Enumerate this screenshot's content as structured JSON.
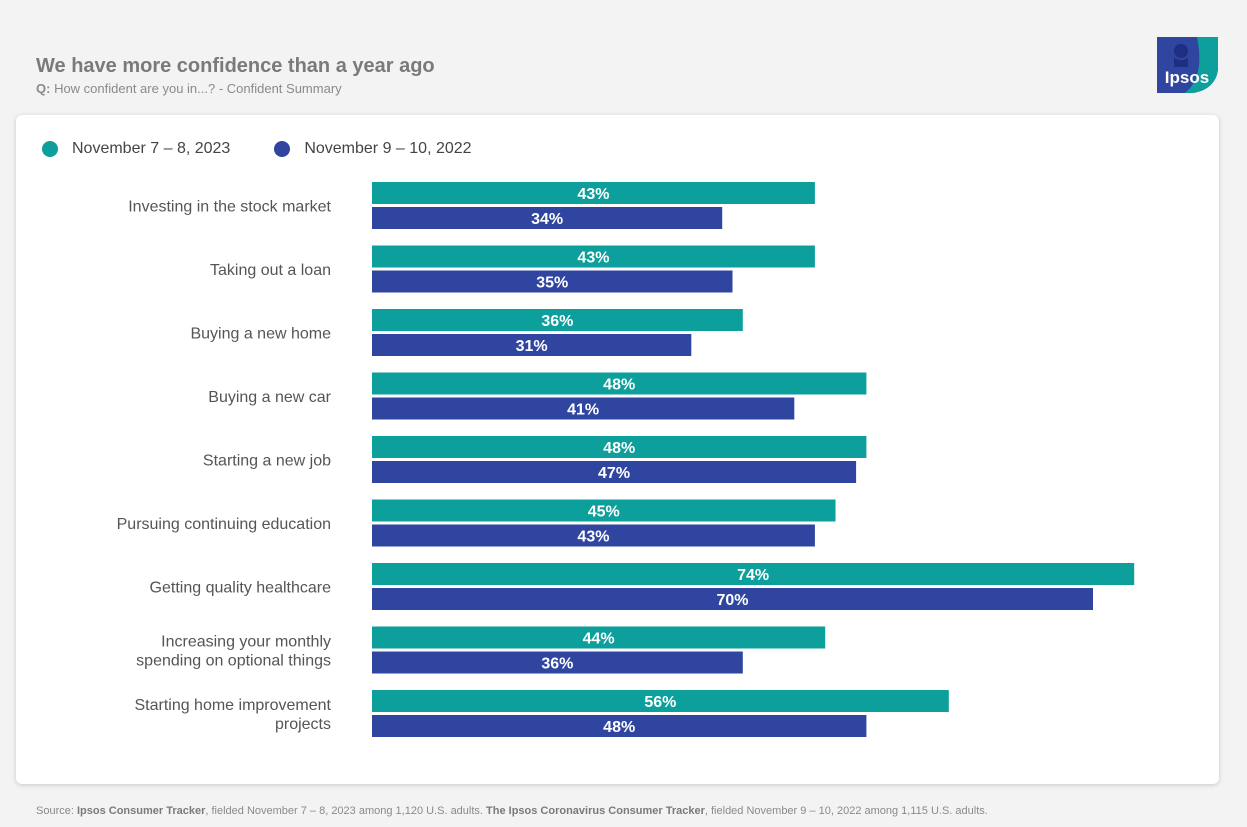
{
  "header": {
    "title": "We have more confidence than a year ago",
    "question_prefix": "Q:",
    "question_text": " How confident are you in...? - Confident Summary"
  },
  "logo": {
    "text": "Ipsos"
  },
  "colors": {
    "series_2023": "#0d9f9b",
    "series_2022": "#2f45a0"
  },
  "chart_data": {
    "type": "bar",
    "orientation": "horizontal",
    "title": "We have more confidence than a year ago",
    "categories": [
      [
        "Investing in the stock market"
      ],
      [
        "Taking out a loan"
      ],
      [
        "Buying a new home"
      ],
      [
        "Buying a new car"
      ],
      [
        "Starting a new job"
      ],
      [
        "Pursuing continuing education"
      ],
      [
        "Getting quality healthcare"
      ],
      [
        "Increasing your monthly",
        "spending on optional things"
      ],
      [
        "Starting home improvement",
        "projects"
      ]
    ],
    "series": [
      {
        "name": "November 7 – 8, 2023",
        "color": "#0d9f9b",
        "values": [
          43,
          43,
          36,
          48,
          48,
          45,
          74,
          44,
          56
        ]
      },
      {
        "name": "November 9 – 10, 2022",
        "color": "#2f45a0",
        "values": [
          34,
          35,
          31,
          41,
          47,
          43,
          70,
          36,
          48
        ]
      }
    ],
    "value_suffix": "%",
    "xlim": [
      0,
      80
    ],
    "legend": "top-left",
    "grid": false
  },
  "footer": {
    "prefix": "Source: ",
    "source1": "Ipsos Consumer Tracker",
    "text1": ", fielded November 7 – 8, 2023 among 1,120 U.S. adults. ",
    "source2": "The Ipsos Coronavirus Consumer Tracker",
    "text2": ", fielded November 9 – 10, 2022 among 1,115 U.S. adults."
  }
}
